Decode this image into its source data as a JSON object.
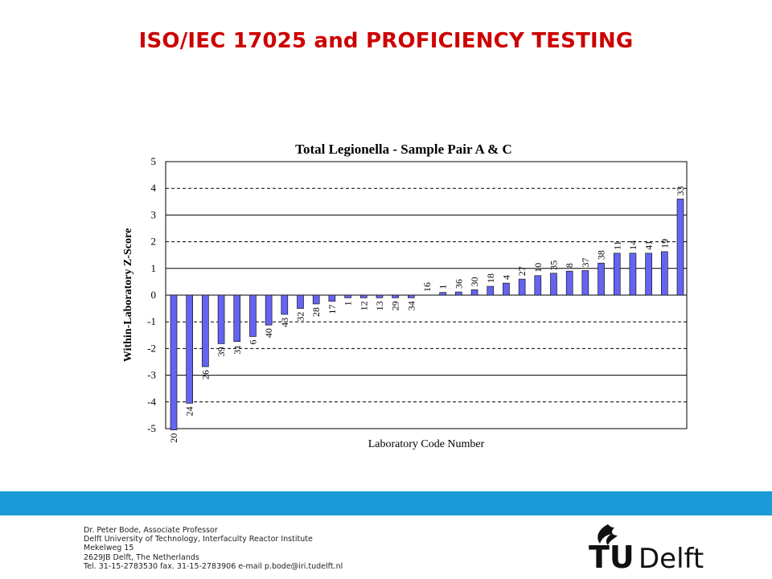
{
  "slide": {
    "title": "ISO/IEC 17025  and  PROFICIENCY  TESTING"
  },
  "chart_data": {
    "type": "bar",
    "title": "Total Legionella - Sample Pair A & C",
    "xlabel": "Laboratory Code Number",
    "ylabel": "Within-Laboratory Z-Score",
    "ylim": [
      -5,
      5
    ],
    "yticks": [
      5,
      4,
      3,
      2,
      1,
      0,
      -1,
      -2,
      -3,
      -4,
      -5
    ],
    "dashed_lines": [
      4,
      2,
      -1,
      -2,
      -4
    ],
    "solid_lines": [
      3,
      1,
      0,
      -3
    ],
    "bar_color": "#6464f0",
    "categories": [
      "20",
      "24",
      "26",
      "39",
      "31",
      "6",
      "40",
      "43",
      "32",
      "28",
      "17",
      "1",
      "12",
      "13",
      "29",
      "34",
      "16",
      "1",
      "36",
      "30",
      "18",
      "4",
      "27",
      "10",
      "35",
      "8",
      "37",
      "38",
      "11",
      "14",
      "41",
      "19",
      "33"
    ],
    "values": [
      -5.05,
      -4.05,
      -2.68,
      -1.82,
      -1.74,
      -1.55,
      -1.12,
      -0.72,
      -0.5,
      -0.33,
      -0.23,
      -0.1,
      -0.1,
      -0.1,
      -0.1,
      -0.1,
      0,
      0.1,
      0.12,
      0.2,
      0.33,
      0.45,
      0.6,
      0.73,
      0.82,
      0.9,
      0.92,
      1.2,
      1.57,
      1.57,
      1.57,
      1.63,
      3.6
    ]
  },
  "footer": {
    "lines": [
      "Dr. Peter Bode, Associate Professor",
      "Delft University of Technology, Interfaculty Reactor Institute",
      "Mekelweg 15",
      "2629JB Delft, The Netherlands",
      "Tel. 31-15-2783530  fax. 31-15-2783906  e-mail p.bode@iri.tudelft.nl"
    ]
  },
  "logo": {
    "tu": "TU",
    "delft": "Delft",
    "color": "#111111"
  }
}
